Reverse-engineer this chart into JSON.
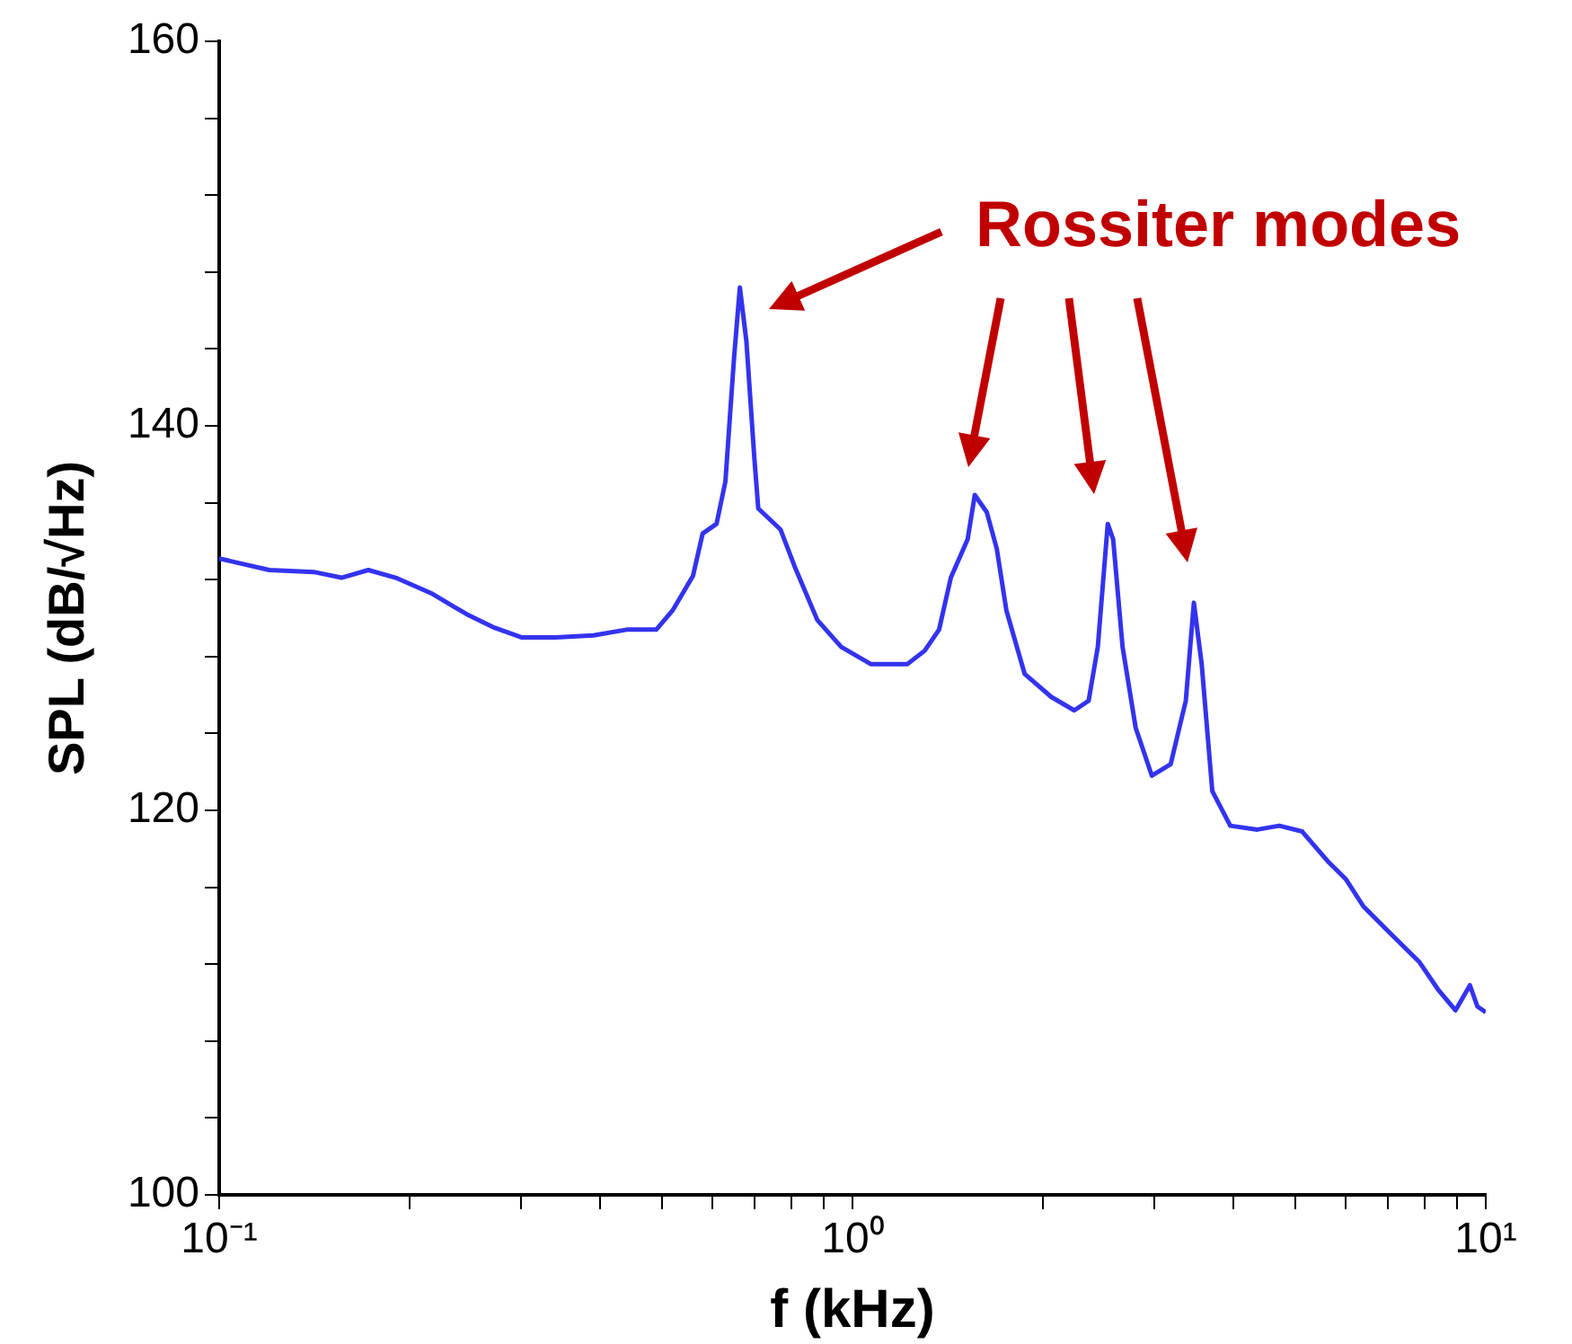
{
  "chart_data": {
    "type": "line",
    "xlabel": "f (kHz)",
    "ylabel": "SPL (dB/√Hz)",
    "log": "x",
    "grid": false,
    "legend": false,
    "annotations": [
      "Rossiter modes"
    ],
    "xlim": [
      0.1,
      10
    ],
    "ylim": [
      100,
      160
    ],
    "xticks": [
      {
        "value": 0.1,
        "label": "10⁻¹"
      },
      {
        "value": 0.2,
        "label": null
      },
      {
        "value": 0.3,
        "label": null
      },
      {
        "value": 0.4,
        "label": null
      },
      {
        "value": 0.5,
        "label": null
      },
      {
        "value": 0.6,
        "label": null
      },
      {
        "value": 0.7,
        "label": null
      },
      {
        "value": 0.8,
        "label": null
      },
      {
        "value": 0.9,
        "label": null
      },
      {
        "value": 1,
        "label": "10⁰"
      },
      {
        "value": 2,
        "label": null
      },
      {
        "value": 3,
        "label": null
      },
      {
        "value": 4,
        "label": null
      },
      {
        "value": 5,
        "label": null
      },
      {
        "value": 6,
        "label": null
      },
      {
        "value": 7,
        "label": null
      },
      {
        "value": 8,
        "label": null
      },
      {
        "value": 9,
        "label": null
      },
      {
        "value": 10,
        "label": "10¹"
      }
    ],
    "yticks": [
      100,
      {
        "value": 104,
        "label": null
      },
      {
        "value": 108,
        "label": null
      },
      {
        "value": 112,
        "label": null
      },
      {
        "value": 116,
        "label": null
      },
      120,
      {
        "value": 124,
        "label": null
      },
      {
        "value": 128,
        "label": null
      },
      {
        "value": 132,
        "label": null
      },
      {
        "value": 136,
        "label": null
      },
      140,
      {
        "value": 144,
        "label": null
      },
      {
        "value": 148,
        "label": null
      },
      {
        "value": 152,
        "label": null
      },
      {
        "value": 156,
        "label": null
      },
      160
    ],
    "series": [
      {
        "color": "#3333ee",
        "x": [
          0.1,
          0.12,
          0.141,
          0.156,
          0.172,
          0.19,
          0.216,
          0.246,
          0.272,
          0.3,
          0.34,
          0.39,
          0.44,
          0.49,
          0.52,
          0.56,
          0.58,
          0.61,
          0.63,
          0.65,
          0.664,
          0.68,
          0.7,
          0.71,
          0.77,
          0.81,
          0.88,
          0.96,
          1.07,
          1.22,
          1.3,
          1.37,
          1.43,
          1.52,
          1.56,
          1.63,
          1.69,
          1.75,
          1.87,
          2.06,
          2.24,
          2.36,
          2.44,
          2.53,
          2.58,
          2.67,
          2.8,
          2.97,
          3.18,
          3.36,
          3.46,
          3.56,
          3.7,
          3.95,
          4.36,
          4.72,
          5.13,
          5.65,
          6.02,
          6.41,
          7.07,
          7.86,
          8.4,
          8.96,
          9.44,
          9.7,
          10
        ],
        "values": [
          133.1,
          132.5,
          132.4,
          132.1,
          132.5,
          132.1,
          131.3,
          130.2,
          129.5,
          129.0,
          129.0,
          129.1,
          129.4,
          129.4,
          130.4,
          132.2,
          134.4,
          134.9,
          137.1,
          143.5,
          147.2,
          144.4,
          138.3,
          135.7,
          134.6,
          132.7,
          129.9,
          128.5,
          127.6,
          127.6,
          128.3,
          129.4,
          132.1,
          134.1,
          136.4,
          135.5,
          133.6,
          130.4,
          127.1,
          125.9,
          125.2,
          125.7,
          128.5,
          134.9,
          134.1,
          128.5,
          124.3,
          121.8,
          122.4,
          125.7,
          130.8,
          127.6,
          121.0,
          119.2,
          119.0,
          119.2,
          118.9,
          117.3,
          116.4,
          115.0,
          113.6,
          112.1,
          110.7,
          109.6,
          110.9,
          109.8,
          109.5
        ]
      }
    ]
  }
}
